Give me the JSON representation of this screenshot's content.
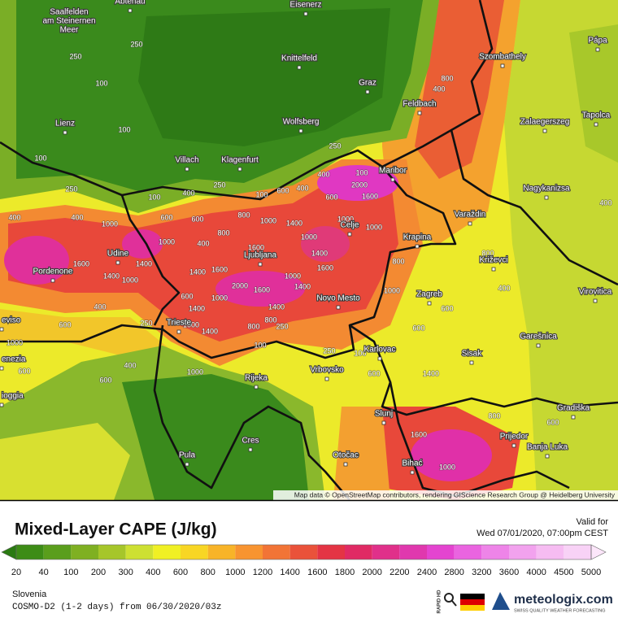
{
  "map": {
    "cities": [
      "Abtenau",
      [
        "Saalfelden",
        "am Steinernen",
        "Meer"
      ],
      "Eisenerz",
      "Knittelfeld",
      "Graz",
      "Szombathely",
      "Pápa",
      "Feldbach",
      "Lienz",
      "Wolfsberg",
      "Zalaegerszeg",
      "Tapolca",
      "Villach",
      "Klagenfurt",
      "Maribor",
      "Nagykanizsa",
      "Varaždin",
      "Celje",
      "Krapina",
      "Udine",
      "Ljubljana",
      "Križevci",
      "Pordenone",
      "Novo Mesto",
      "Zagreb",
      "Virovitica",
      "eviso",
      "Trieste",
      "Garešnica",
      "Karlovac",
      "Sisak",
      "enezia",
      "Vrbovsko",
      "Rijeka",
      "Gradiška",
      "ioggia",
      "Slunj",
      "Cres",
      "Prijedor",
      "Pula",
      "Otočac",
      "Bihać",
      "Banja Luka"
    ],
    "contour_labels": [
      250,
      250,
      100,
      100,
      100,
      250,
      400,
      400,
      1000,
      100,
      400,
      250,
      100,
      600,
      400,
      400,
      250,
      100,
      2000,
      1600,
      600,
      1000,
      1000,
      600,
      600,
      800,
      800,
      1000,
      1400,
      1000,
      400,
      1000,
      1400,
      1600,
      1400,
      1000,
      1400,
      1600,
      1600,
      2000,
      1600,
      1000,
      1400,
      1600,
      1400,
      600,
      1400,
      1000,
      1400,
      800,
      800,
      250,
      1000,
      1400,
      250,
      400,
      600,
      1000,
      600,
      600,
      400,
      1000,
      100,
      250,
      100,
      600,
      1400,
      600,
      600,
      800,
      1000,
      800,
      400,
      400,
      800,
      1600,
      1000,
      800,
      600,
      400
    ],
    "attribution": "Map data © OpenStreetMap contributors, rendering GIScience Research Group @ Heidelberg University"
  },
  "legend": {
    "title": "Mixed-Layer CAPE (J/kg)",
    "valid_label": "Valid for",
    "valid_time": "Wed 07/01/2020, 07:00pm CEST",
    "levels": [
      20,
      40,
      100,
      200,
      300,
      400,
      600,
      800,
      1000,
      1200,
      1400,
      1600,
      1800,
      2000,
      2200,
      2400,
      2800,
      3200,
      3600,
      4000,
      4500,
      5000
    ],
    "colors": [
      "#2a7a12",
      "#3d8c16",
      "#5a9e1c",
      "#7fb022",
      "#a6c62a",
      "#cde032",
      "#f0f024",
      "#f8d624",
      "#f8b428",
      "#f89430",
      "#f27436",
      "#ea523a",
      "#e43444",
      "#e02a64",
      "#e0308a",
      "#e038ae",
      "#e444d0",
      "#ea64e0",
      "#ee84e8",
      "#f2a2ee",
      "#f6bcf2",
      "#f8d2f6",
      "#fce6fa"
    ]
  },
  "footer": {
    "region": "Slovenia",
    "model": "COSMO-D2 (1-2 days) from 06/30/2020/03z",
    "badge": "RAPID HD",
    "brand": "meteologix.com",
    "tagline": "SWISS QUALITY WEATHER FORECASTING"
  }
}
